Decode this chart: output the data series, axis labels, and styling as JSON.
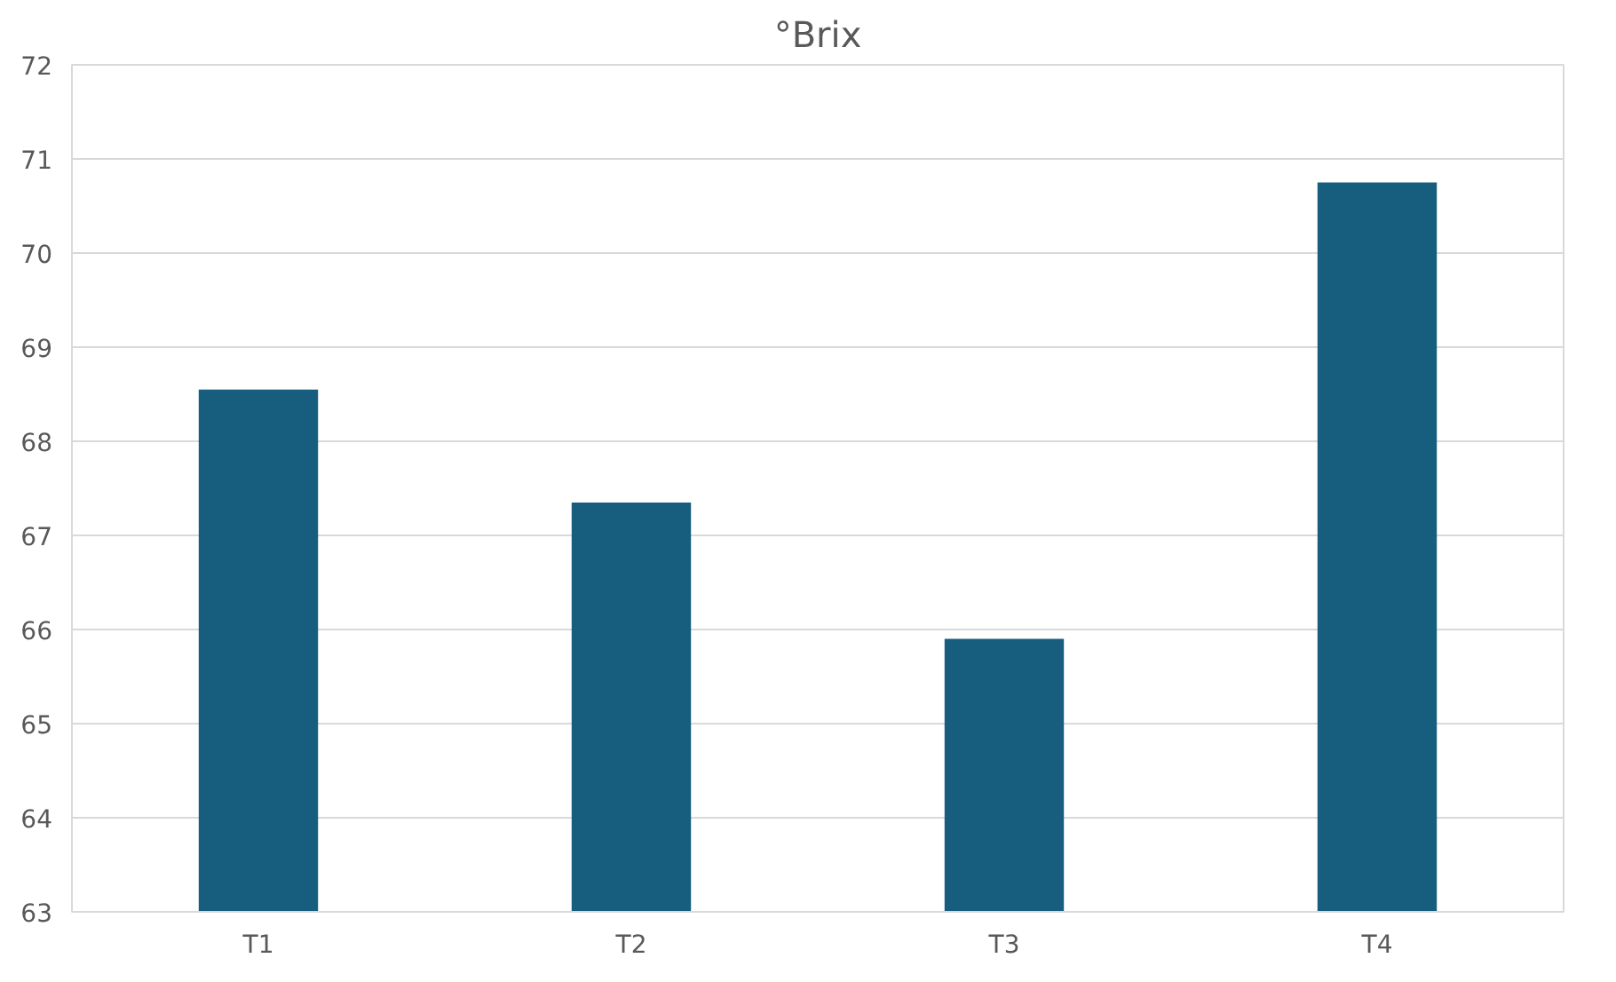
{
  "chart_data": {
    "type": "bar",
    "title": "°Brix",
    "categories": [
      "T1",
      "T2",
      "T3",
      "T4"
    ],
    "values": [
      68.55,
      67.35,
      65.9,
      70.75
    ],
    "color": "#175e7e",
    "ylim": [
      63,
      72
    ],
    "yticks": [
      63,
      64,
      65,
      66,
      67,
      68,
      69,
      70,
      71,
      72
    ],
    "grid": "y"
  }
}
